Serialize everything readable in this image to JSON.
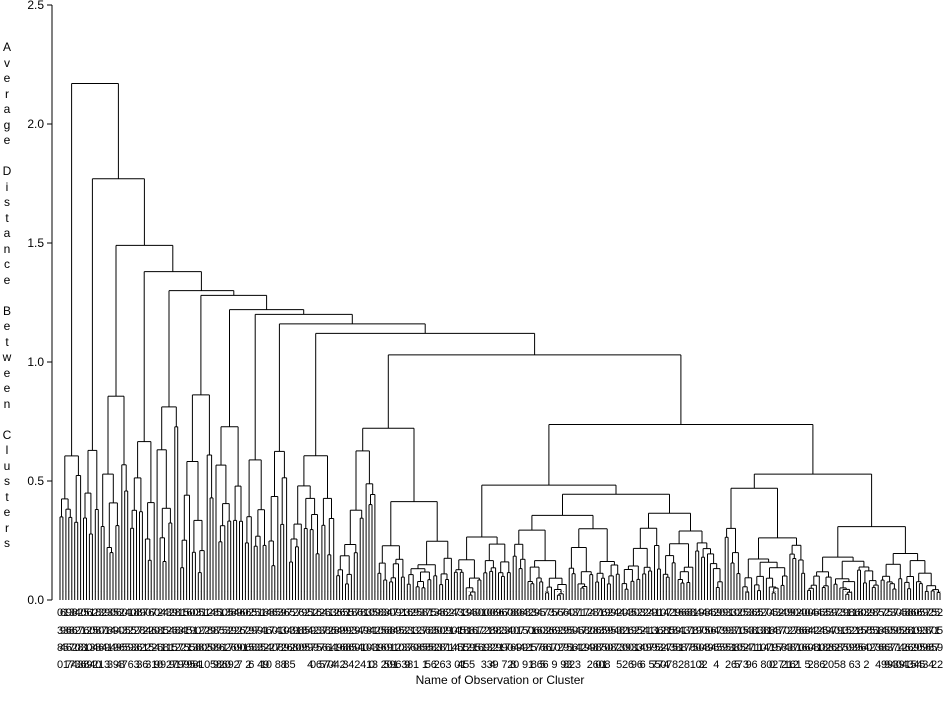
{
  "chart_data": {
    "type": "dendrogram",
    "xlabel": "Name of Observation or Cluster",
    "ylabel": "Average Distance Between Clusters",
    "ylim": [
      0.0,
      2.5
    ],
    "yticks": [
      {
        "value": 0.0,
        "label": "0.0"
      },
      {
        "value": 0.5,
        "label": "0.5"
      },
      {
        "value": 1.0,
        "label": "1.0"
      },
      {
        "value": 1.5,
        "label": "1.5"
      },
      {
        "value": 2.0,
        "label": "2.0"
      },
      {
        "value": 2.5,
        "label": "2.5"
      }
    ],
    "leaf_count": 300,
    "top_merges": [
      {
        "height": 2.17,
        "note": "root"
      },
      {
        "height": 1.77
      },
      {
        "height": 1.49
      },
      {
        "height": 1.38
      },
      {
        "height": 1.3
      },
      {
        "height": 1.28
      },
      {
        "height": 1.22
      },
      {
        "height": 1.2
      },
      {
        "height": 1.16
      },
      {
        "height": 1.12
      },
      {
        "height": 1.03
      },
      {
        "height": 0.99
      }
    ],
    "leaf_labels": "dense, overlapping observation identifiers (illegible at this resolution)"
  },
  "axis": {
    "x_title": "Name of Observation or Cluster",
    "y_title_letters": [
      "A",
      "v",
      "e",
      "r",
      "a",
      "g",
      "e",
      "",
      "D",
      "i",
      "s",
      "t",
      "a",
      "n",
      "c",
      "e",
      "",
      "B",
      "e",
      "t",
      "w",
      "e",
      "e",
      "n",
      "",
      "C",
      "l",
      "u",
      "s",
      "t",
      "e",
      "r",
      "s"
    ]
  }
}
